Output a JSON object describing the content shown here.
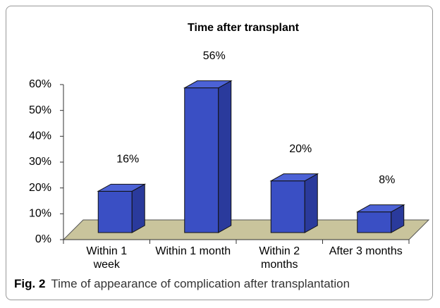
{
  "chart_data": {
    "type": "bar3d",
    "title": "Time after transplant",
    "categories": [
      "Within 1 week",
      "Within 1 month",
      "Within 2 months",
      "After 3 months"
    ],
    "values": [
      16,
      56,
      20,
      8
    ],
    "value_labels": [
      "16%",
      "56%",
      "20%",
      "8%"
    ],
    "color": "#3a4fc4",
    "ylim": [
      0,
      60
    ],
    "yticks": [
      {
        "value": 0,
        "label": "0%"
      },
      {
        "value": 10,
        "label": "10%"
      },
      {
        "value": 20,
        "label": "20%"
      },
      {
        "value": 30,
        "label": "30%"
      },
      {
        "value": 40,
        "label": "40%"
      },
      {
        "value": 50,
        "label": "50%"
      },
      {
        "value": 60,
        "label": "60%"
      }
    ]
  },
  "caption": {
    "label": "Fig. 2",
    "text": "Time of appearance of complication after transplantation"
  }
}
